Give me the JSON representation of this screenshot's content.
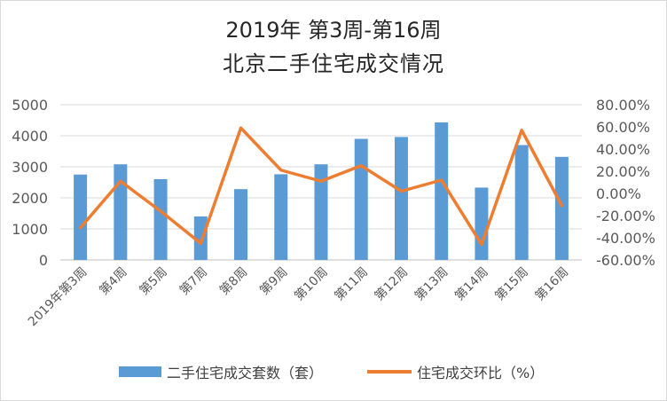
{
  "chart_data": {
    "type": "bar",
    "title": "2019年 第3周-第16周",
    "subtitle": "北京二手住宅成交情况",
    "categories": [
      "2019年第3周",
      "第4周",
      "第5周",
      "第7周",
      "第8周",
      "第9周",
      "第10周",
      "第11周",
      "第12周",
      "第13周",
      "第14周",
      "第15周",
      "第16周"
    ],
    "series": [
      {
        "name": "二手住宅成交套数（套）",
        "type": "bar",
        "axis": "left",
        "color": "#5b9bd5",
        "values": [
          2750,
          3080,
          2600,
          1400,
          2280,
          2760,
          3080,
          3900,
          3960,
          4430,
          2330,
          3700,
          3320
        ]
      },
      {
        "name": "住宅成交环比（%）",
        "type": "line",
        "axis": "right",
        "color": "#ed7d31",
        "values": [
          -31,
          11,
          -16,
          -45,
          59,
          21,
          11,
          25,
          2,
          12,
          -46,
          57,
          -11
        ]
      }
    ],
    "y_left": {
      "min": 0,
      "max": 5000,
      "ticks": [
        "0",
        "1000",
        "2000",
        "3000",
        "4000",
        "5000"
      ]
    },
    "y_right": {
      "min": -60,
      "max": 80,
      "ticks": [
        "-60.00%",
        "-40.00%",
        "-20.00%",
        "0.00%",
        "20.00%",
        "40.00%",
        "60.00%",
        "80.00%"
      ]
    },
    "grid": true,
    "legend_position": "bottom"
  }
}
